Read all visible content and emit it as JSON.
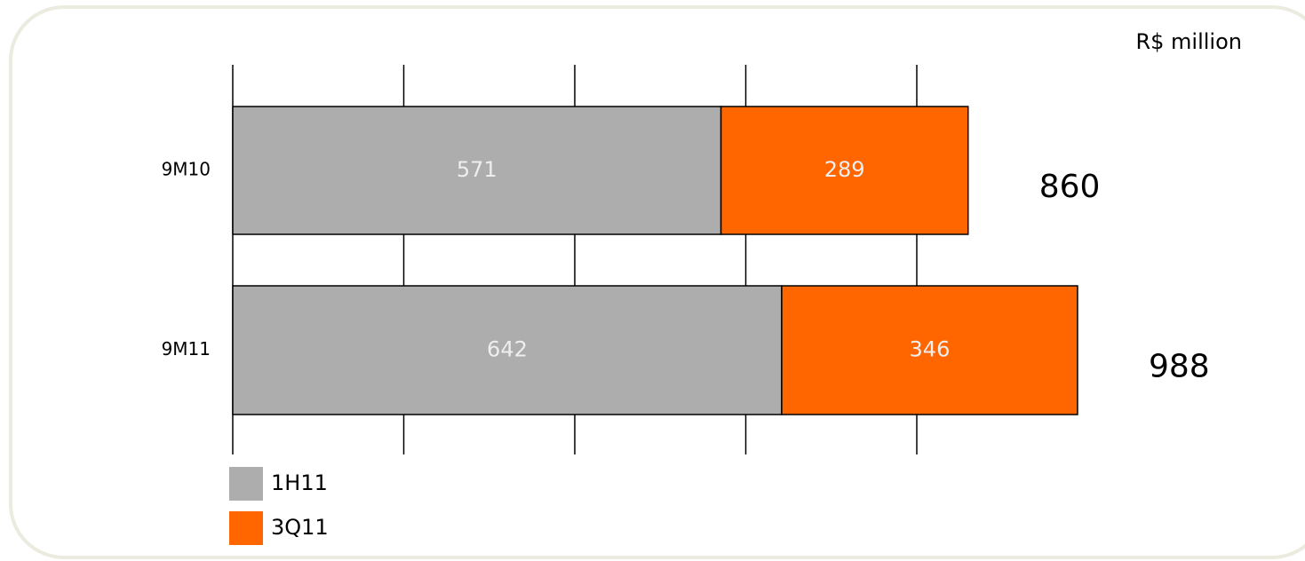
{
  "chart_data": {
    "type": "stacked-barh",
    "unit_label": "R$ million",
    "categories": [
      "9M10",
      "9M11"
    ],
    "series": [
      {
        "name": "1H11",
        "color": "#adadad",
        "values": [
          571,
          642
        ]
      },
      {
        "name": "3Q11",
        "color": "#ff6600",
        "values": [
          289,
          346
        ]
      }
    ],
    "totals": [
      860,
      988
    ],
    "xlim": [
      0,
      1000
    ],
    "xticks": [
      0,
      200,
      400,
      600,
      800
    ],
    "grid": true
  }
}
